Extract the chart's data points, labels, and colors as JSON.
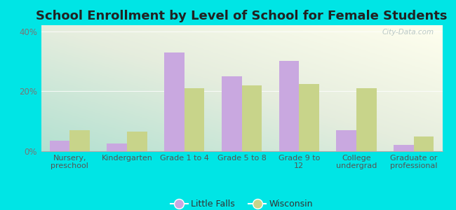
{
  "title": "School Enrollment by Level of School for Female Students",
  "categories": [
    "Nursery,\npreschool",
    "Kindergarten",
    "Grade 1 to 4",
    "Grade 5 to 8",
    "Grade 9 to\n12",
    "College\nundergrad",
    "Graduate or\nprofessional"
  ],
  "little_falls": [
    3.5,
    2.5,
    33.0,
    25.0,
    30.0,
    7.0,
    2.0
  ],
  "wisconsin": [
    7.0,
    6.5,
    21.0,
    22.0,
    22.5,
    21.0,
    5.0
  ],
  "little_falls_color": "#c9a8e0",
  "wisconsin_color": "#c8d48a",
  "ylim": [
    0,
    42
  ],
  "yticks": [
    0,
    20,
    40
  ],
  "ytick_labels": [
    "0%",
    "20%",
    "40%"
  ],
  "legend_labels": [
    "Little Falls",
    "Wisconsin"
  ],
  "background_color": "#00e5e5",
  "watermark": "City-Data.com",
  "bar_width": 0.35,
  "title_fontsize": 13,
  "tick_fontsize": 8.5,
  "xlabel_fontsize": 8
}
